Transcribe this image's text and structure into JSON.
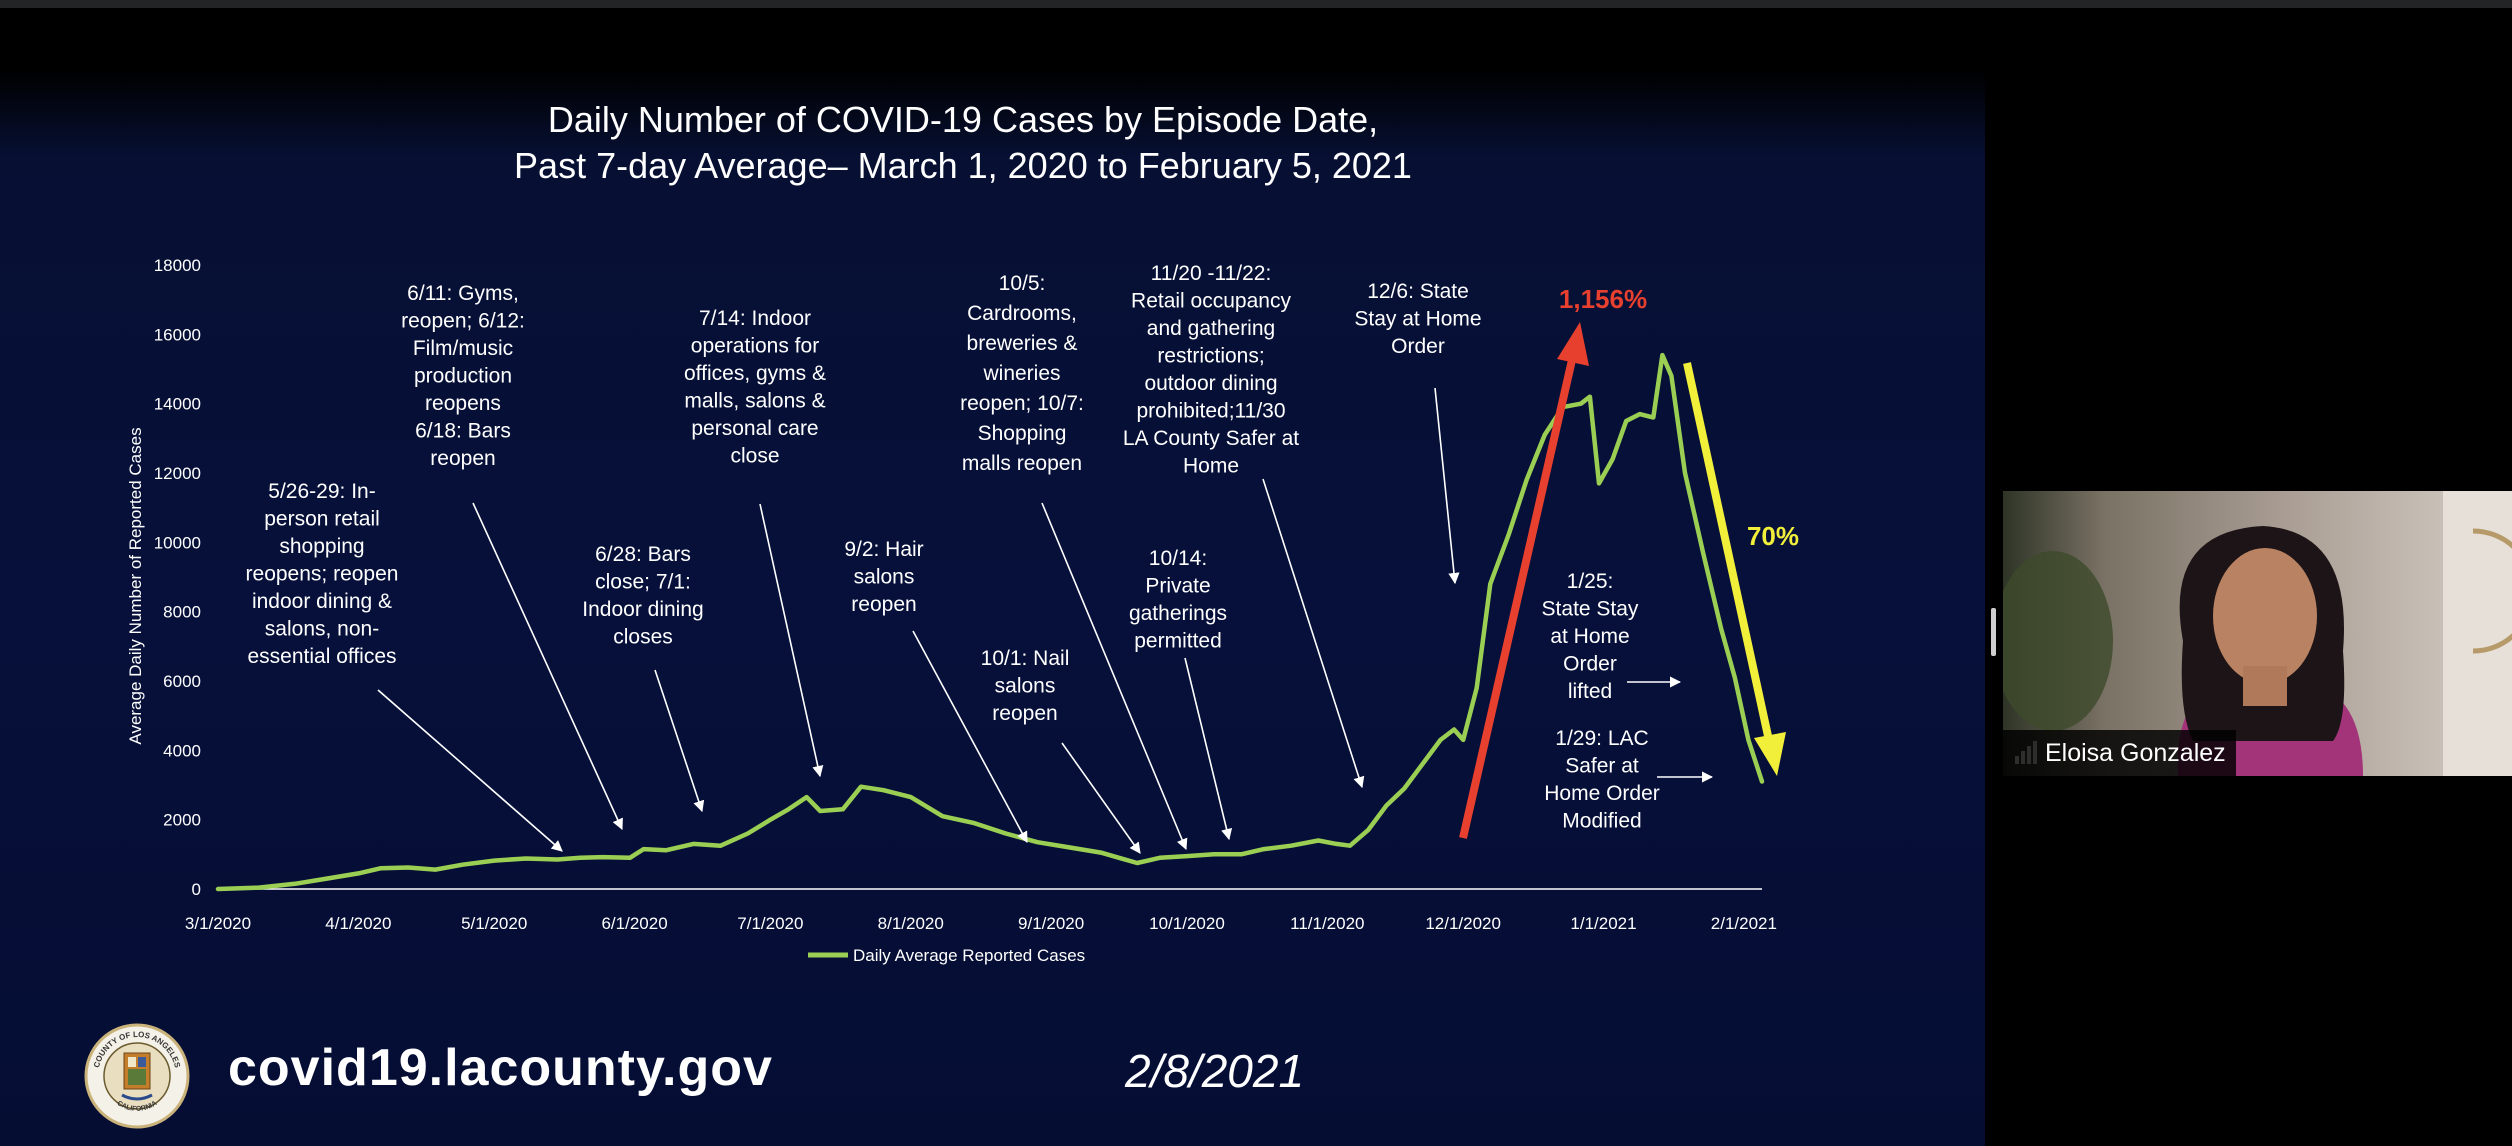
{
  "slide": {
    "website": "covid19.lacounty.gov",
    "date": "2/8/2021",
    "seal_text": [
      "COUNTY OF LOS ANGELES",
      "CALIFORNIA"
    ]
  },
  "video": {
    "participant_name": "Eloisa Gonzalez",
    "icons": [
      "signal-strength-icon"
    ]
  },
  "chart_data": {
    "type": "line",
    "title": [
      "Daily Number of COVID-19 Cases by Episode Date,",
      "Past 7-day Average– March 1, 2020 to February 5, 2021"
    ],
    "ylabel": "Average Daily Number of Reported Cases",
    "xlabel": "",
    "ylim": [
      0,
      18000
    ],
    "yticks": [
      "0",
      "2000",
      "4000",
      "6000",
      "8000",
      "10000",
      "12000",
      "14000",
      "16000",
      "18000"
    ],
    "xticks": [
      "3/1/2020",
      "4/1/2020",
      "5/1/2020",
      "6/1/2020",
      "7/1/2020",
      "8/1/2020",
      "9/1/2020",
      "10/1/2020",
      "11/1/2020",
      "12/1/2020",
      "1/1/2021",
      "2/1/2021"
    ],
    "legend": {
      "label": "Daily Average Reported Cases",
      "placement": "bottom"
    },
    "series_color": "#9bcf54",
    "series": [
      {
        "name": "Daily Average Reported Cases",
        "points": [
          [
            "2020-03-01",
            0
          ],
          [
            "2020-03-10",
            40
          ],
          [
            "2020-03-18",
            150
          ],
          [
            "2020-03-25",
            300
          ],
          [
            "2020-04-01",
            450
          ],
          [
            "2020-04-06",
            600
          ],
          [
            "2020-04-12",
            620
          ],
          [
            "2020-04-18",
            560
          ],
          [
            "2020-04-24",
            700
          ],
          [
            "2020-05-01",
            820
          ],
          [
            "2020-05-08",
            880
          ],
          [
            "2020-05-15",
            850
          ],
          [
            "2020-05-20",
            900
          ],
          [
            "2020-05-25",
            920
          ],
          [
            "2020-05-31",
            900
          ],
          [
            "2020-06-03",
            1150
          ],
          [
            "2020-06-08",
            1120
          ],
          [
            "2020-06-14",
            1300
          ],
          [
            "2020-06-20",
            1250
          ],
          [
            "2020-06-26",
            1600
          ],
          [
            "2020-07-01",
            2000
          ],
          [
            "2020-07-05",
            2300
          ],
          [
            "2020-07-09",
            2650
          ],
          [
            "2020-07-12",
            2250
          ],
          [
            "2020-07-17",
            2300
          ],
          [
            "2020-07-21",
            2950
          ],
          [
            "2020-07-26",
            2850
          ],
          [
            "2020-08-01",
            2650
          ],
          [
            "2020-08-08",
            2100
          ],
          [
            "2020-08-15",
            1900
          ],
          [
            "2020-08-22",
            1600
          ],
          [
            "2020-08-29",
            1350
          ],
          [
            "2020-09-05",
            1200
          ],
          [
            "2020-09-12",
            1050
          ],
          [
            "2020-09-16",
            900
          ],
          [
            "2020-09-20",
            750
          ],
          [
            "2020-09-25",
            900
          ],
          [
            "2020-10-01",
            950
          ],
          [
            "2020-10-07",
            1000
          ],
          [
            "2020-10-13",
            1000
          ],
          [
            "2020-10-18",
            1150
          ],
          [
            "2020-10-24",
            1250
          ],
          [
            "2020-10-30",
            1400
          ],
          [
            "2020-11-03",
            1300
          ],
          [
            "2020-11-06",
            1250
          ],
          [
            "2020-11-10",
            1700
          ],
          [
            "2020-11-14",
            2400
          ],
          [
            "2020-11-18",
            2900
          ],
          [
            "2020-11-22",
            3600
          ],
          [
            "2020-11-26",
            4300
          ],
          [
            "2020-11-29",
            4600
          ],
          [
            "2020-12-01",
            4300
          ],
          [
            "2020-12-04",
            5800
          ],
          [
            "2020-12-07",
            8800
          ],
          [
            "2020-12-11",
            10200
          ],
          [
            "2020-12-15",
            11800
          ],
          [
            "2020-12-19",
            13100
          ],
          [
            "2020-12-23",
            13900
          ],
          [
            "2020-12-27",
            14000
          ],
          [
            "2020-12-29",
            14200
          ],
          [
            "2020-12-31",
            11700
          ],
          [
            "2021-01-03",
            12400
          ],
          [
            "2021-01-06",
            13500
          ],
          [
            "2021-01-09",
            13700
          ],
          [
            "2021-01-12",
            13600
          ],
          [
            "2021-01-14",
            15400
          ],
          [
            "2021-01-16",
            14800
          ],
          [
            "2021-01-19",
            12000
          ],
          [
            "2021-01-23",
            9700
          ],
          [
            "2021-01-27",
            7500
          ],
          [
            "2021-01-30",
            6100
          ],
          [
            "2021-02-02",
            4300
          ],
          [
            "2021-02-05",
            3100
          ]
        ]
      }
    ],
    "annotations": [
      {
        "lines": [
          "5/26-29: In-",
          "person retail",
          "shopping",
          "reopens; reopen",
          "indoor dining &",
          "salons, non-",
          "essential offices"
        ]
      },
      {
        "lines": [
          "6/11: Gyms,",
          "reopen; 6/12:",
          "Film/music",
          "production",
          "reopens",
          "6/18: Bars",
          "reopen"
        ]
      },
      {
        "lines": [
          "6/28: Bars",
          "close; 7/1:",
          "Indoor dining",
          "closes"
        ]
      },
      {
        "lines": [
          "7/14: Indoor",
          "operations for",
          "offices, gyms &",
          "malls, salons &",
          "personal care",
          "close"
        ]
      },
      {
        "lines": [
          "9/2: Hair",
          "salons",
          "reopen"
        ]
      },
      {
        "lines": [
          "10/1: Nail",
          "salons",
          "reopen"
        ]
      },
      {
        "lines": [
          "10/5:",
          "Cardrooms,",
          "breweries &",
          "wineries",
          "reopen; 10/7:",
          "Shopping",
          "malls reopen"
        ]
      },
      {
        "lines": [
          "10/14:",
          "Private",
          "gatherings",
          "permitted"
        ]
      },
      {
        "lines": [
          "11/20 -11/22:",
          "Retail occupancy",
          "and gathering",
          "restrictions;",
          "outdoor dining",
          "prohibited;11/30",
          "LA County Safer at",
          "Home"
        ]
      },
      {
        "lines": [
          "12/6:  State",
          "Stay at Home",
          "Order"
        ]
      },
      {
        "lines": [
          "1/25:",
          "State Stay",
          "at Home",
          "Order",
          "lifted"
        ]
      },
      {
        "lines": [
          "1/29:  LAC",
          "Safer at",
          "Home Order",
          "Modified"
        ]
      }
    ],
    "highlights": [
      {
        "label": "1,156%",
        "color": "#e8402e"
      },
      {
        "label": "70%",
        "color": "#f2ef3a"
      }
    ]
  }
}
